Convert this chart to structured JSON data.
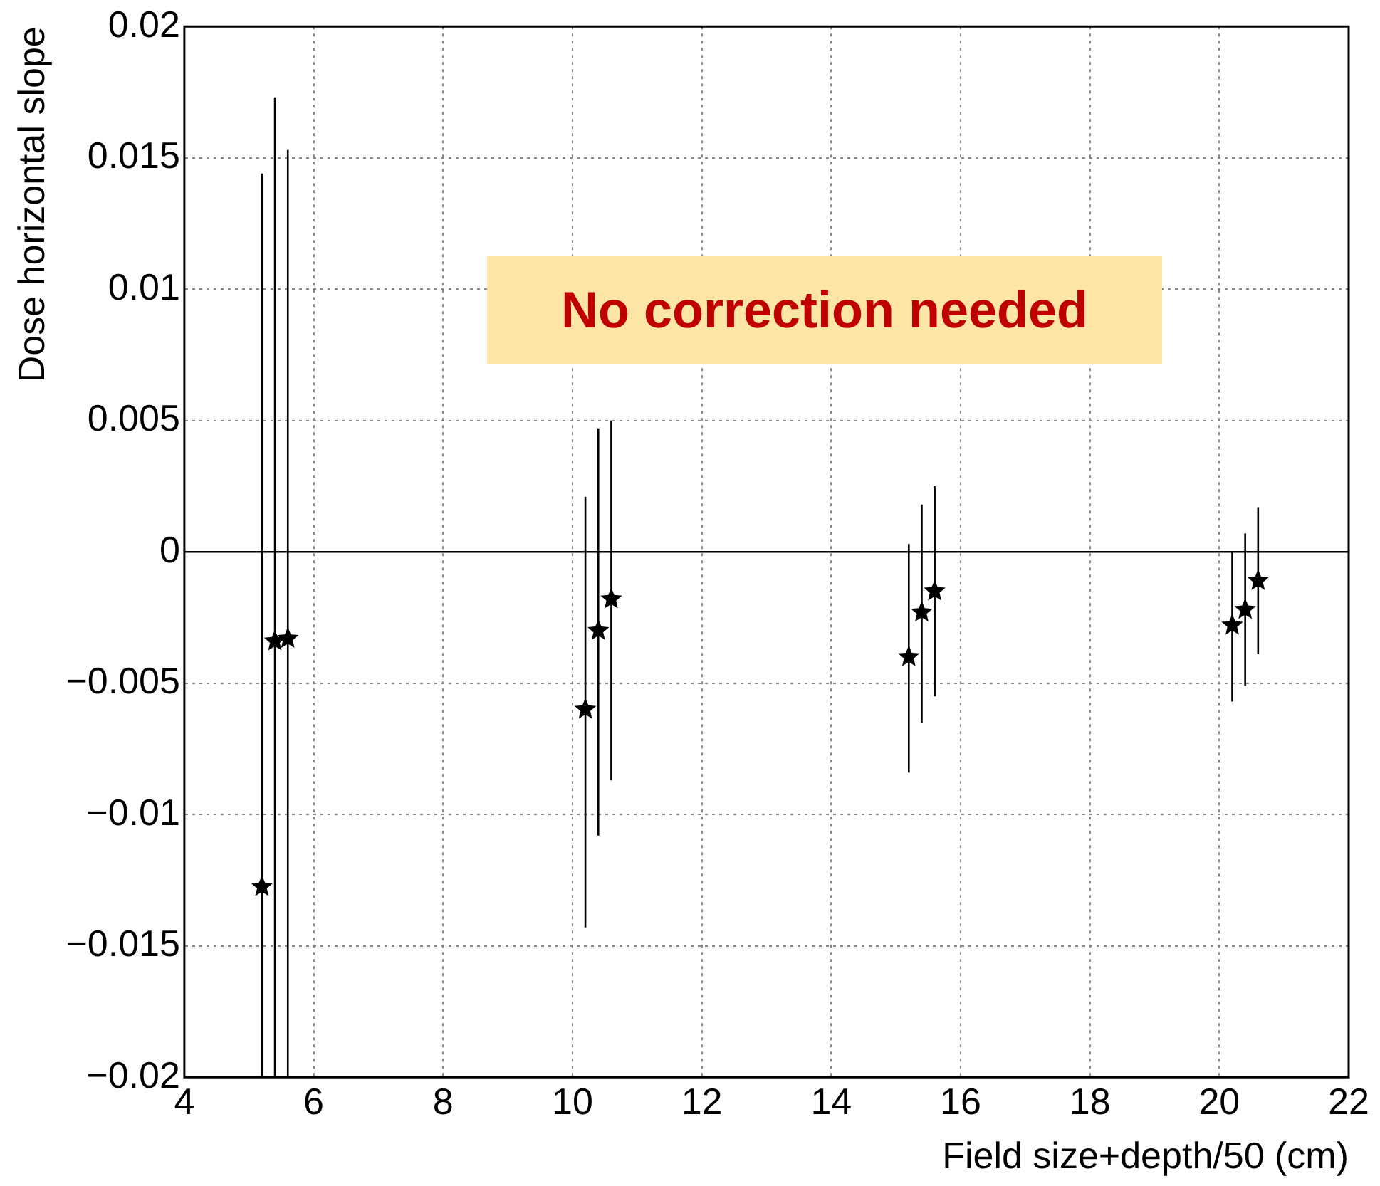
{
  "chart_data": {
    "type": "scatter",
    "xlabel": "Field size+depth/50 (cm)",
    "ylabel": "Dose horizontal slope",
    "annotations": [
      "No correction needed"
    ],
    "series": [
      {
        "color": "#000000",
        "x": [
          5.2,
          5.4,
          5.6,
          10.2,
          10.4,
          10.6,
          15.2,
          15.4,
          15.6,
          20.2,
          20.4,
          20.6
        ],
        "values": [
          -0.01275,
          -0.0034,
          -0.0033,
          -0.006,
          -0.003,
          -0.0018,
          -0.004,
          -0.0023,
          -0.0015,
          -0.0028,
          -0.0022,
          -0.0011
        ],
        "errors": [
          [
            -0.02,
            0.0144
          ],
          [
            -0.02,
            0.0173
          ],
          [
            -0.02,
            0.0153
          ],
          [
            -0.0143,
            0.0021
          ],
          [
            -0.0108,
            0.0047
          ],
          [
            -0.0087,
            0.005
          ],
          [
            -0.0084,
            0.0003
          ],
          [
            -0.0065,
            0.0018
          ],
          [
            -0.0055,
            0.0025
          ],
          [
            -0.0057,
            0.0
          ],
          [
            -0.0051,
            0.0007
          ],
          [
            -0.0039,
            0.0017
          ]
        ]
      }
    ],
    "marker": "star",
    "grid": true,
    "legend": false,
    "xlim": [
      4,
      22
    ],
    "xticks": [
      4,
      6,
      8,
      10,
      12,
      14,
      16,
      18,
      20,
      22
    ],
    "ylim": [
      -0.02,
      0.02
    ],
    "yticks": [
      {
        "value": -0.02,
        "label": "−0.02"
      },
      {
        "value": -0.015,
        "label": "−0.015"
      },
      {
        "value": -0.01,
        "label": "−0.01"
      },
      {
        "value": -0.005,
        "label": "−0.005"
      },
      0,
      0.005,
      0.01,
      0.015,
      0.02
    ],
    "ref_lines": [
      {
        "axis": "y",
        "value": 0,
        "color": "#000000"
      }
    ]
  }
}
